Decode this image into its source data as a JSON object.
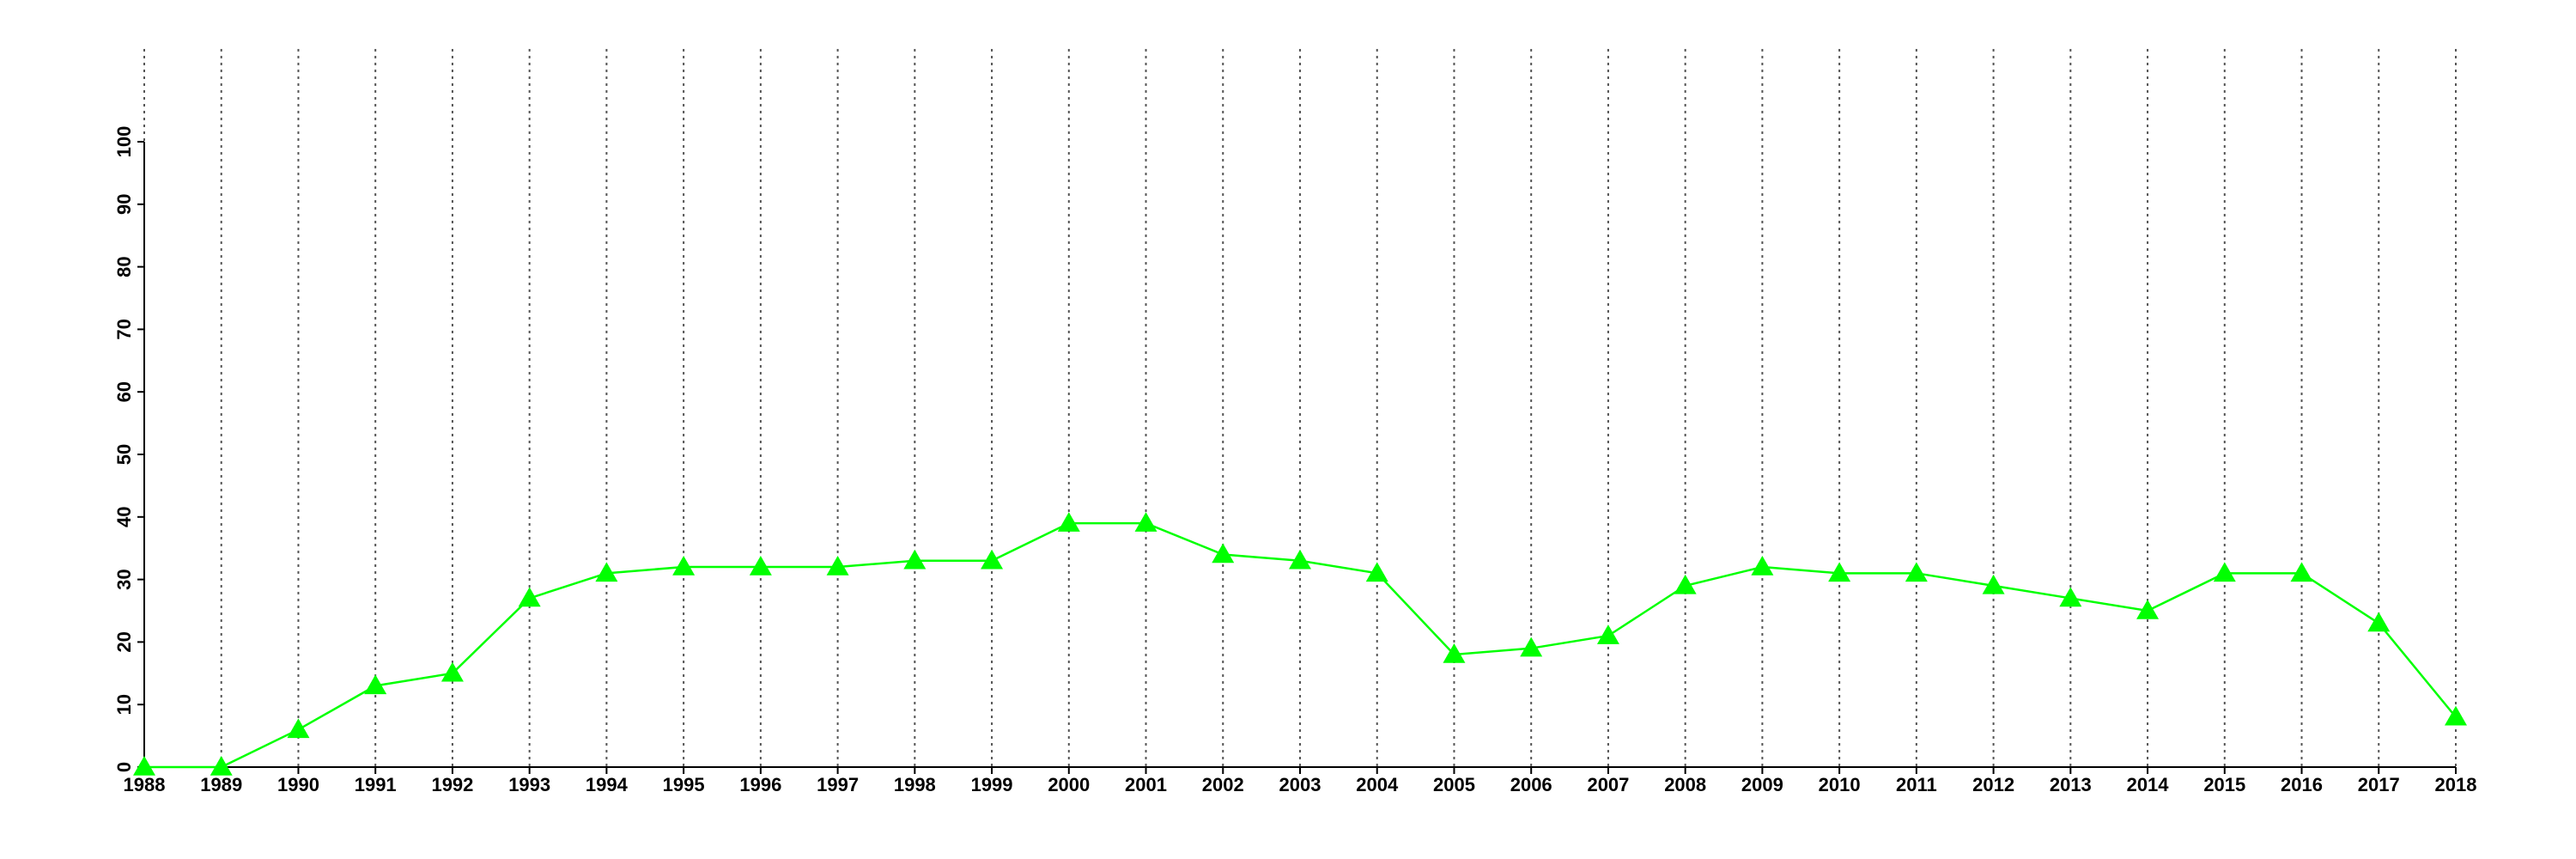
{
  "chart_data": {
    "type": "line",
    "x": [
      1988,
      1989,
      1990,
      1991,
      1992,
      1993,
      1994,
      1995,
      1996,
      1997,
      1998,
      1999,
      2000,
      2001,
      2002,
      2003,
      2004,
      2005,
      2006,
      2007,
      2008,
      2009,
      2010,
      2011,
      2012,
      2013,
      2014,
      2015,
      2016,
      2017,
      2018
    ],
    "series": [
      {
        "color": "#00ff00",
        "values": [
          0,
          0,
          6,
          13,
          15,
          27,
          31,
          32,
          32,
          32,
          33,
          33,
          39,
          39,
          34,
          33,
          31,
          18,
          19,
          21,
          29,
          32,
          31,
          31,
          29,
          27,
          25,
          31,
          31,
          23,
          8
        ]
      }
    ],
    "xlim": [
      1988,
      2018
    ],
    "xticks": [
      1988,
      1989,
      1990,
      1991,
      1992,
      1993,
      1994,
      1995,
      1996,
      1997,
      1998,
      1999,
      2000,
      2001,
      2002,
      2003,
      2004,
      2005,
      2006,
      2007,
      2008,
      2009,
      2010,
      2011,
      2012,
      2013,
      2014,
      2015,
      2016,
      2017,
      2018
    ],
    "ylim": [
      0,
      100
    ],
    "yticks": [
      0,
      10,
      20,
      30,
      40,
      50,
      60,
      70,
      80,
      90,
      100
    ],
    "grid": "x"
  }
}
